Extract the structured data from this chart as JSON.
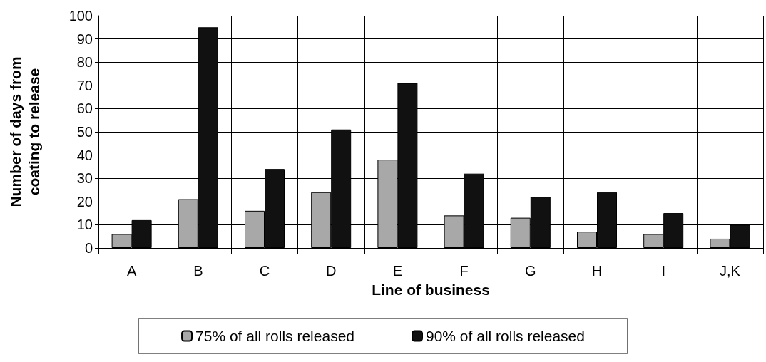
{
  "chart_data": {
    "type": "bar",
    "xlabel": "Line of business",
    "ylabel": "Number of days from\ncoating to release",
    "categories": [
      "A",
      "B",
      "C",
      "D",
      "E",
      "F",
      "G",
      "H",
      "I",
      "J,K"
    ],
    "series": [
      {
        "name": "75% of all rolls released",
        "color": "#a8a8a8",
        "values": [
          6,
          21,
          16,
          24,
          38,
          14,
          13,
          7,
          6,
          4
        ]
      },
      {
        "name": "90% of all rolls released",
        "color": "#111111",
        "values": [
          12,
          95,
          34,
          51,
          71,
          32,
          22,
          24,
          15,
          10
        ]
      }
    ],
    "ylim": [
      0,
      100
    ],
    "yticks": [
      0,
      10,
      20,
      30,
      40,
      50,
      60,
      70,
      80,
      90,
      100
    ],
    "grid": true,
    "legend": "bottom"
  }
}
